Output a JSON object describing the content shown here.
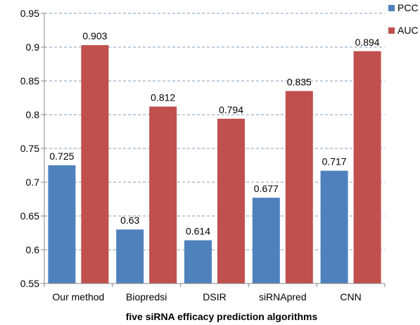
{
  "chart_data": {
    "type": "bar",
    "categories": [
      "Our method",
      "Biopredsi",
      "DSIR",
      "siRNApred",
      "CNN"
    ],
    "series": [
      {
        "name": "PCC",
        "values": [
          0.725,
          0.63,
          0.614,
          0.677,
          0.717
        ],
        "color": "#4F81BD"
      },
      {
        "name": "AUC",
        "values": [
          0.903,
          0.812,
          0.794,
          0.835,
          0.894
        ],
        "color": "#C0504D"
      }
    ],
    "data_labels": [
      [
        "0.725",
        "0.63",
        "0.614",
        "0.677",
        "0.717"
      ],
      [
        "0.903",
        "0.812",
        "0.794",
        "0.835",
        "0.894"
      ]
    ],
    "xlabel": "five siRNA efficacy prediction algorithms",
    "ylabel": "",
    "ylim": [
      0.55,
      0.95
    ],
    "yticks": [
      0.55,
      0.6,
      0.65,
      0.7,
      0.75,
      0.8,
      0.85,
      0.9,
      0.95
    ],
    "ytick_labels": [
      "0.55",
      "0.6",
      "0.65",
      "0.7",
      "0.75",
      "0.8",
      "0.85",
      "0.9",
      "0.95"
    ],
    "grid": true,
    "legend_position": "top-right"
  }
}
